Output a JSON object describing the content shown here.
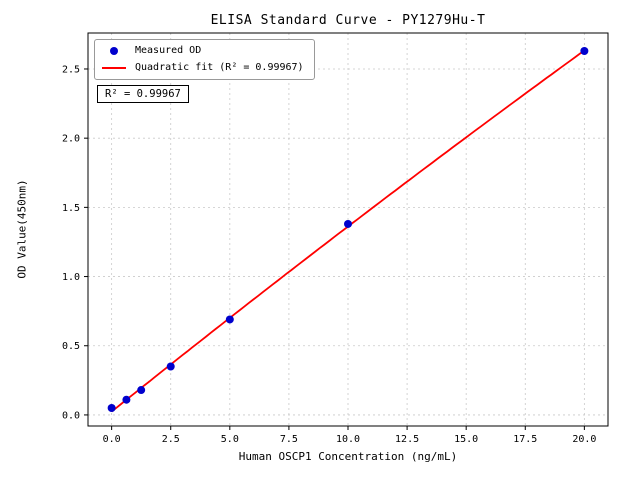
{
  "chart_data": {
    "type": "scatter",
    "title": "ELISA Standard Curve - PY1279Hu-T",
    "xlabel": "Human OSCP1 Concentration (ng/mL)",
    "ylabel": "OD Value(450nm)",
    "xlim": [
      -1,
      21
    ],
    "ylim": [
      -0.08,
      2.76
    ],
    "grid": true,
    "xticks": {
      "values": [
        0,
        2.5,
        5,
        7.5,
        10,
        12.5,
        15,
        17.5,
        20
      ],
      "labels": [
        "0.0",
        "2.5",
        "5.0",
        "7.5",
        "10.0",
        "12.5",
        "15.0",
        "17.5",
        "20.0"
      ]
    },
    "yticks": {
      "values": [
        0,
        0.5,
        1,
        1.5,
        2,
        2.5
      ],
      "labels": [
        "0.0",
        "0.5",
        "1.0",
        "1.5",
        "2.0",
        "2.5"
      ]
    },
    "series": [
      {
        "name": "Measured OD",
        "type": "scatter",
        "color": "#0000cd",
        "x": [
          0,
          0.625,
          1.25,
          2.5,
          5,
          10,
          20
        ],
        "y": [
          0.05,
          0.11,
          0.18,
          0.35,
          0.69,
          1.38,
          2.63
        ]
      },
      {
        "name": "Quadratic fit (R² = 0.99967)",
        "type": "quadratic_fit",
        "color": "#ff0000",
        "fit_of": 0,
        "r_squared": 0.99967
      }
    ],
    "legend": {
      "position": "upper left"
    },
    "annotation": {
      "text": "R² = 0.99967"
    }
  }
}
